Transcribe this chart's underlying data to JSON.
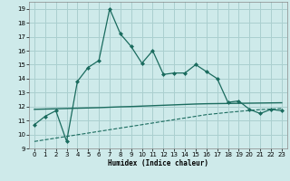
{
  "xlabel": "Humidex (Indice chaleur)",
  "background_color": "#ceeaea",
  "grid_color": "#aacfcf",
  "line_color": "#1a6b5e",
  "xlim": [
    -0.5,
    23.5
  ],
  "ylim": [
    9,
    19.5
  ],
  "yticks": [
    9,
    10,
    11,
    12,
    13,
    14,
    15,
    16,
    17,
    18,
    19
  ],
  "xticks": [
    0,
    1,
    2,
    3,
    4,
    5,
    6,
    7,
    8,
    9,
    10,
    11,
    12,
    13,
    14,
    15,
    16,
    17,
    18,
    19,
    20,
    21,
    22,
    23
  ],
  "series1_x": [
    0,
    1,
    2,
    3,
    4,
    5,
    6,
    7,
    8,
    9,
    10,
    11,
    12,
    13,
    14,
    15,
    16,
    17,
    18,
    19,
    20,
    21,
    22,
    23
  ],
  "series1_y": [
    10.7,
    11.3,
    11.7,
    9.5,
    13.8,
    14.8,
    15.3,
    19.0,
    17.2,
    16.3,
    15.1,
    16.0,
    14.3,
    14.4,
    14.4,
    15.0,
    14.5,
    14.0,
    12.3,
    12.4,
    11.8,
    11.5,
    11.8,
    11.7
  ],
  "series2_x": [
    0,
    1,
    2,
    3,
    4,
    5,
    6,
    7,
    8,
    9,
    10,
    11,
    12,
    13,
    14,
    15,
    16,
    17,
    18,
    19,
    20,
    21,
    22,
    23
  ],
  "series2_y": [
    11.8,
    11.82,
    11.84,
    11.86,
    11.88,
    11.9,
    11.92,
    11.95,
    11.98,
    12.0,
    12.03,
    12.06,
    12.09,
    12.12,
    12.15,
    12.18,
    12.2,
    12.21,
    12.22,
    12.23,
    12.24,
    12.25,
    12.26,
    12.27
  ],
  "series3_x": [
    0,
    1,
    2,
    3,
    4,
    5,
    6,
    7,
    8,
    9,
    10,
    11,
    12,
    13,
    14,
    15,
    16,
    17,
    18,
    19,
    20,
    21,
    22,
    23
  ],
  "series3_y": [
    9.5,
    9.62,
    9.74,
    9.86,
    9.98,
    10.1,
    10.22,
    10.34,
    10.46,
    10.58,
    10.7,
    10.82,
    10.94,
    11.06,
    11.18,
    11.3,
    11.42,
    11.5,
    11.58,
    11.65,
    11.72,
    11.78,
    11.82,
    11.86
  ]
}
